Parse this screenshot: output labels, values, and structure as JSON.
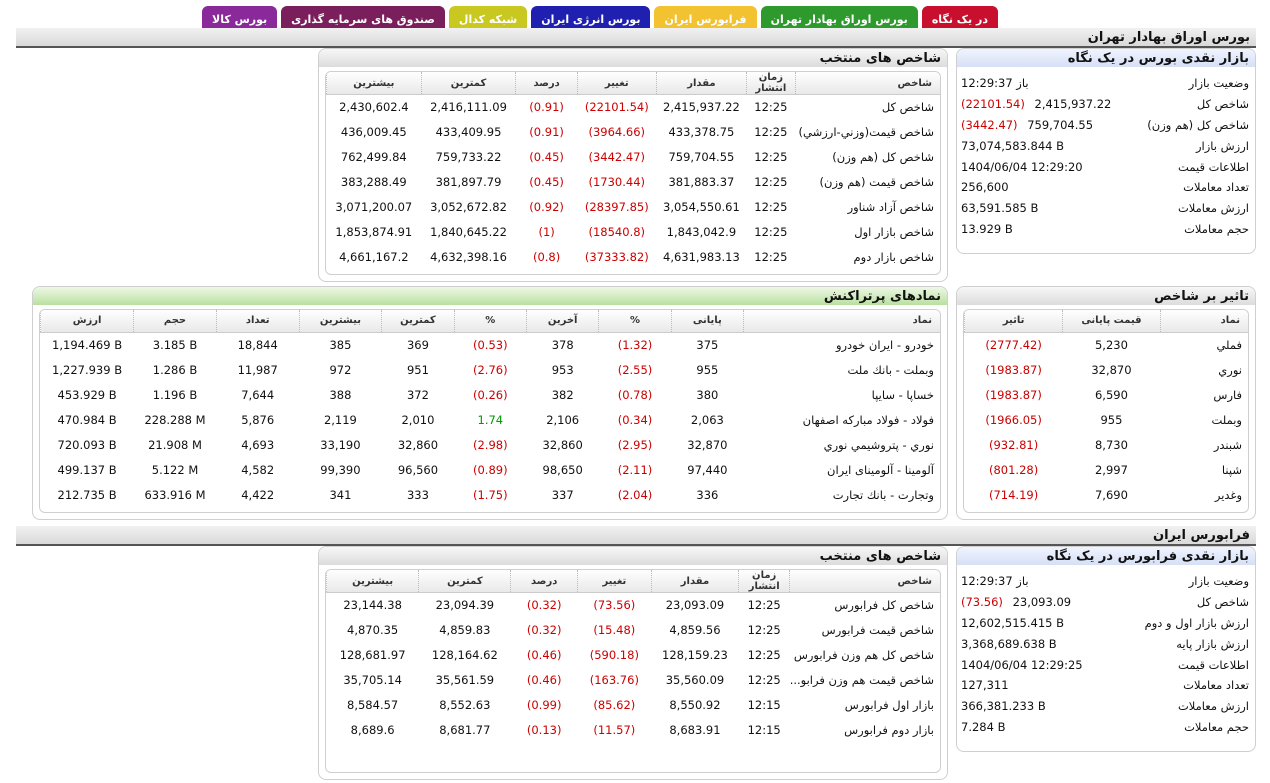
{
  "tabs": [
    {
      "label": "در یک نگاه",
      "color": "#c8102e"
    },
    {
      "label": "بورس اوراق بهادار تهران",
      "color": "#2e9a2e"
    },
    {
      "label": "فرابورس ایران",
      "color": "#f2c230"
    },
    {
      "label": "بورس انرژی ایران",
      "color": "#2020b0"
    },
    {
      "label": "شبکه کدال",
      "color": "#c8c820"
    },
    {
      "label": "صندوق های سرمایه گذاری",
      "color": "#7a1f5c"
    },
    {
      "label": "بورس کالا",
      "color": "#8a2a9a"
    }
  ],
  "tse": {
    "section_title": "بورس اوراق بهادار تهران",
    "glance": {
      "title": "بازار نقدی بورس در یک نگاه",
      "rows": [
        {
          "k": "وضعیت بازار",
          "v": "باز 12:29:37",
          "chg": ""
        },
        {
          "k": "شاخص کل",
          "v": "2,415,937.22",
          "chg": "(22101.54)"
        },
        {
          "k": "شاخص کل (هم وزن)",
          "v": "759,704.55",
          "chg": "(3442.47)"
        },
        {
          "k": "ارزش بازار",
          "v": "73,074,583.844 B",
          "chg": ""
        },
        {
          "k": "اطلاعات قیمت",
          "v": "1404/06/04 12:29:20",
          "chg": ""
        },
        {
          "k": "تعداد معاملات",
          "v": "256,600",
          "chg": ""
        },
        {
          "k": "ارزش معاملات",
          "v": "63,591.585 B",
          "chg": ""
        },
        {
          "k": "حجم معاملات",
          "v": "13.929 B",
          "chg": ""
        }
      ]
    },
    "indices": {
      "title": "شاخص های منتخب",
      "headers": [
        "شاخص",
        "زمان انتشار",
        "مقدار",
        "تغییر",
        "درصد",
        "کمترین",
        "بیشترین"
      ],
      "rows": [
        [
          "شاخص كل",
          "12:25",
          "2,415,937.22",
          "(22101.54)",
          "(0.91)",
          "2,416,111.09",
          "2,430,602.4"
        ],
        [
          "شاخص قيمت(وزني-ارزشي)",
          "12:25",
          "433,378.75",
          "(3964.66)",
          "(0.91)",
          "433,409.95",
          "436,009.45"
        ],
        [
          "شاخص كل (هم وزن)",
          "12:25",
          "759,704.55",
          "(3442.47)",
          "(0.45)",
          "759,733.22",
          "762,499.84"
        ],
        [
          "شاخص قيمت (هم وزن)",
          "12:25",
          "381,883.37",
          "(1730.44)",
          "(0.45)",
          "381,897.79",
          "383,288.49"
        ],
        [
          "شاخص آزاد شناور",
          "12:25",
          "3,054,550.61",
          "(28397.85)",
          "(0.92)",
          "3,052,672.82",
          "3,071,200.07"
        ],
        [
          "شاخص بازار اول",
          "12:25",
          "1,843,042.9",
          "(18540.8)",
          "(1)",
          "1,840,645.22",
          "1,853,874.91"
        ],
        [
          "شاخص بازار دوم",
          "12:25",
          "4,631,983.13",
          "(37333.82)",
          "(0.8)",
          "4,632,398.16",
          "4,661,167.2"
        ]
      ]
    },
    "impact": {
      "title": "تاثیر بر شاخص",
      "headers": [
        "نماد",
        "قیمت پایانی",
        "تاثیر"
      ],
      "rows": [
        [
          "فملي",
          "5,230",
          "(2777.42)"
        ],
        [
          "نوري",
          "32,870",
          "(1983.87)"
        ],
        [
          "فارس",
          "6,590",
          "(1983.87)"
        ],
        [
          "وبملت",
          "955",
          "(1966.05)"
        ],
        [
          "شبندر",
          "8,730",
          "(932.81)"
        ],
        [
          "شپنا",
          "2,997",
          "(801.28)"
        ],
        [
          "وغدير",
          "7,690",
          "(714.19)"
        ]
      ]
    },
    "popular": {
      "title": "نمادهای پرتراکنش",
      "headers": [
        "نماد",
        "پایانی",
        "%",
        "آخرین",
        "%",
        "کمترین",
        "بیشترین",
        "تعداد",
        "حجم",
        "ارزش"
      ],
      "rows": [
        [
          "خودرو - ايران خودرو",
          "375",
          "(1.32)",
          "378",
          "(0.53)",
          "369",
          "385",
          "18,844",
          "3.185 B",
          "1,194.469 B"
        ],
        [
          "وبملت - بانك ملت",
          "955",
          "(2.55)",
          "953",
          "(2.76)",
          "951",
          "972",
          "11,987",
          "1.286 B",
          "1,227.939 B"
        ],
        [
          "خساپا - سايپا",
          "380",
          "(0.78)",
          "382",
          "(0.26)",
          "372",
          "388",
          "7,644",
          "1.196 B",
          "453.929 B"
        ],
        [
          "فولاد - فولاد مباركه اصفهان",
          "2,063",
          "(0.34)",
          "2,106",
          "1.74",
          "2,010",
          "2,119",
          "5,876",
          "228.288 M",
          "470.984 B"
        ],
        [
          "نوري - پتروشيمي نوري",
          "32,870",
          "(2.95)",
          "32,860",
          "(2.98)",
          "32,860",
          "33,190",
          "4,693",
          "21.908 M",
          "720.093 B"
        ],
        [
          "آلومينا - آلومينای ایران",
          "97,440",
          "(2.11)",
          "98,650",
          "(0.89)",
          "96,560",
          "99,390",
          "4,582",
          "5.122 M",
          "499.137 B"
        ],
        [
          "وتجارت - بانك تجارت",
          "336",
          "(2.04)",
          "337",
          "(1.75)",
          "333",
          "341",
          "4,422",
          "633.916 M",
          "212.735 B"
        ]
      ]
    }
  },
  "ifb": {
    "section_title": "فرابورس ایران",
    "glance": {
      "title": "بازار نقدی فرابورس در یک نگاه",
      "rows": [
        {
          "k": "وضعیت بازار",
          "v": "باز 12:29:37",
          "chg": ""
        },
        {
          "k": "شاخص کل",
          "v": "23,093.09",
          "chg": "(73.56)"
        },
        {
          "k": "ارزش بازار اول و دوم",
          "v": "12,602,515.415 B",
          "chg": ""
        },
        {
          "k": "ارزش بازار پایه",
          "v": "3,368,689.638 B",
          "chg": ""
        },
        {
          "k": "اطلاعات قیمت",
          "v": "1404/06/04 12:29:25",
          "chg": ""
        },
        {
          "k": "تعداد معاملات",
          "v": "127,311",
          "chg": ""
        },
        {
          "k": "ارزش معاملات",
          "v": "366,381.233 B",
          "chg": ""
        },
        {
          "k": "حجم معاملات",
          "v": "7.284 B",
          "chg": ""
        }
      ]
    },
    "indices": {
      "title": "شاخص های منتخب",
      "headers": [
        "شاخص",
        "زمان انتشار",
        "مقدار",
        "تغییر",
        "درصد",
        "کمترین",
        "بیشترین"
      ],
      "rows": [
        [
          "شاخص كل فرابورس",
          "12:25",
          "23,093.09",
          "(73.56)",
          "(0.32)",
          "23,094.39",
          "23,144.38"
        ],
        [
          "شاخص قيمت فرابورس",
          "12:25",
          "4,859.56",
          "(15.48)",
          "(0.32)",
          "4,859.83",
          "4,870.35"
        ],
        [
          "شاخص كل هم وزن فرابورس",
          "12:25",
          "128,159.23",
          "(590.18)",
          "(0.46)",
          "128,164.62",
          "128,681.97"
        ],
        [
          "شاخص قيمت هم وزن فرابو...",
          "12:25",
          "35,560.09",
          "(163.76)",
          "(0.46)",
          "35,561.59",
          "35,705.14"
        ],
        [
          "بازار اول فرابورس",
          "12:15",
          "8,550.92",
          "(85.62)",
          "(0.99)",
          "8,552.63",
          "8,584.57"
        ],
        [
          "بازار دوم فرابورس",
          "12:15",
          "8,683.91",
          "(11.57)",
          "(0.13)",
          "8,681.77",
          "8,689.6"
        ]
      ]
    }
  }
}
